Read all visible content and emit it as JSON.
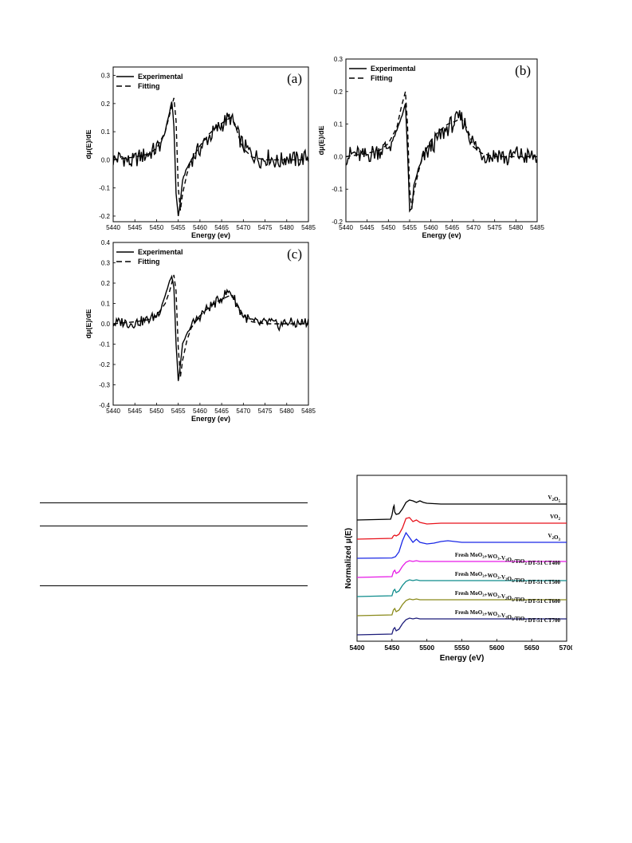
{
  "chart_data": [
    {
      "id": "a",
      "type": "line",
      "panel_label": "(a)",
      "xlabel": "Energy (ev)",
      "ylabel": "dμ(E)/dE",
      "xlim": [
        5440,
        5485
      ],
      "ylim": [
        -0.22,
        0.33
      ],
      "x_ticks": [
        5440,
        5445,
        5450,
        5455,
        5460,
        5465,
        5470,
        5475,
        5480,
        5485
      ],
      "y_ticks": [
        -0.2,
        -0.1,
        0.0,
        0.1,
        0.2,
        0.3
      ],
      "y_tick_labels": [
        "-0.2",
        "-0.1",
        "0.0",
        "0.1",
        "0.2",
        "0.3"
      ],
      "legend": {
        "experimental": "Experimental",
        "fitting": "Fitting",
        "position": "top-left"
      },
      "series": [
        {
          "name": "Experimental",
          "style": "solid",
          "x": [
            5440,
            5442,
            5444,
            5446,
            5448,
            5450,
            5451,
            5452,
            5453,
            5453.5,
            5454,
            5454.5,
            5455,
            5455.5,
            5456,
            5457,
            5458,
            5460,
            5462,
            5464,
            5466,
            5467,
            5468,
            5469,
            5470,
            5472,
            5474,
            5476,
            5478,
            5480,
            5482,
            5485
          ],
          "y": [
            0.0,
            0.01,
            -0.01,
            0.01,
            0.02,
            0.04,
            0.06,
            0.1,
            0.17,
            0.21,
            0.12,
            -0.12,
            -0.2,
            -0.15,
            -0.07,
            -0.03,
            0.0,
            0.04,
            0.08,
            0.11,
            0.14,
            0.15,
            0.12,
            0.08,
            0.05,
            0.02,
            0.0,
            0.01,
            -0.01,
            0.01,
            0.0,
            0.01
          ]
        },
        {
          "name": "Fitting",
          "style": "dashed",
          "x": [
            5440,
            5445,
            5448,
            5450,
            5452,
            5453,
            5454,
            5454.5,
            5455,
            5455.5,
            5456,
            5457,
            5458,
            5460,
            5462,
            5464,
            5466,
            5467,
            5468,
            5469,
            5470,
            5472,
            5475,
            5480,
            5485
          ],
          "y": [
            0.0,
            0.01,
            0.02,
            0.04,
            0.1,
            0.16,
            0.22,
            0.14,
            -0.1,
            -0.18,
            -0.12,
            -0.05,
            0.0,
            0.05,
            0.09,
            0.12,
            0.14,
            0.15,
            0.13,
            0.08,
            0.04,
            0.01,
            0.0,
            0.0,
            0.0
          ]
        }
      ]
    },
    {
      "id": "b",
      "type": "line",
      "panel_label": "(b)",
      "xlabel": "Energy (ev)",
      "ylabel": "dμ(E)/dE",
      "xlim": [
        5440,
        5485
      ],
      "ylim": [
        -0.2,
        0.3
      ],
      "x_ticks": [
        5440,
        5445,
        5450,
        5455,
        5460,
        5465,
        5470,
        5475,
        5480,
        5485
      ],
      "y_ticks": [
        -0.2,
        -0.1,
        0.0,
        0.1,
        0.2,
        0.3
      ],
      "y_tick_labels": [
        "-0.2",
        "-0.1",
        "0.0",
        "0.1",
        "0.2",
        "0.3"
      ],
      "legend": {
        "experimental": "Experimental",
        "fitting": "Fitting",
        "position": "top-left"
      },
      "series": [
        {
          "name": "Experimental",
          "style": "solid",
          "x": [
            5440,
            5442,
            5444,
            5446,
            5448,
            5450,
            5451,
            5452,
            5453,
            5454,
            5454.5,
            5455,
            5455.5,
            5456,
            5457,
            5458,
            5460,
            5462,
            5464,
            5466,
            5467,
            5468,
            5469,
            5470,
            5472,
            5474,
            5476,
            5478,
            5480,
            5482,
            5485
          ],
          "y": [
            0.0,
            0.01,
            0.0,
            0.01,
            0.02,
            0.03,
            0.05,
            0.08,
            0.12,
            0.16,
            0.02,
            -0.17,
            -0.16,
            -0.09,
            -0.04,
            -0.01,
            0.03,
            0.06,
            0.09,
            0.11,
            0.12,
            0.1,
            0.07,
            0.04,
            0.01,
            0.0,
            0.01,
            -0.01,
            0.01,
            0.0,
            0.0
          ]
        },
        {
          "name": "Fitting",
          "style": "dashed",
          "x": [
            5440,
            5445,
            5448,
            5450,
            5452,
            5453,
            5454,
            5454.5,
            5455,
            5455.5,
            5456,
            5457,
            5458,
            5460,
            5462,
            5464,
            5466,
            5467,
            5468,
            5469,
            5470,
            5472,
            5475,
            5480,
            5485
          ],
          "y": [
            0.0,
            0.01,
            0.02,
            0.04,
            0.09,
            0.15,
            0.2,
            0.1,
            -0.1,
            -0.16,
            -0.11,
            -0.05,
            0.0,
            0.05,
            0.08,
            0.1,
            0.11,
            0.12,
            0.1,
            0.07,
            0.03,
            0.01,
            0.0,
            0.0,
            0.0
          ]
        }
      ]
    },
    {
      "id": "c",
      "type": "line",
      "panel_label": "(c)",
      "xlabel": "Energy (ev)",
      "ylabel": "dμ(E)/dE",
      "xlim": [
        5440,
        5485
      ],
      "ylim": [
        -0.4,
        0.4
      ],
      "x_ticks": [
        5440,
        5445,
        5450,
        5455,
        5460,
        5465,
        5470,
        5475,
        5480,
        5485
      ],
      "y_ticks": [
        -0.4,
        -0.3,
        -0.2,
        -0.1,
        0.0,
        0.1,
        0.2,
        0.3,
        0.4
      ],
      "y_tick_labels": [
        "-0.4",
        "-0.3",
        "-0.2",
        "-0.1",
        "0.0",
        "0.1",
        "0.2",
        "0.3",
        "0.4"
      ],
      "legend": {
        "experimental": "Experimental",
        "fitting": "Fitting",
        "position": "top-left"
      },
      "series": [
        {
          "name": "Experimental",
          "style": "solid",
          "x": [
            5440,
            5442,
            5444,
            5446,
            5448,
            5450,
            5451,
            5452,
            5453,
            5453.5,
            5454,
            5454.5,
            5455,
            5455.5,
            5456,
            5457,
            5458,
            5460,
            5462,
            5464,
            5466,
            5467,
            5468,
            5469,
            5470,
            5472,
            5474,
            5476,
            5478,
            5480,
            5482,
            5485
          ],
          "y": [
            0.0,
            0.01,
            0.0,
            0.01,
            0.02,
            0.04,
            0.08,
            0.14,
            0.21,
            0.23,
            0.18,
            -0.1,
            -0.28,
            -0.2,
            -0.1,
            -0.05,
            -0.01,
            0.04,
            0.08,
            0.11,
            0.15,
            0.16,
            0.12,
            0.07,
            0.04,
            0.01,
            0.0,
            0.01,
            -0.01,
            0.01,
            0.0,
            0.01
          ]
        },
        {
          "name": "Fitting",
          "style": "dashed",
          "x": [
            5440,
            5445,
            5448,
            5450,
            5452,
            5453,
            5454,
            5454.5,
            5455,
            5455.5,
            5456,
            5457,
            5458,
            5460,
            5462,
            5464,
            5466,
            5467,
            5468,
            5469,
            5470,
            5472,
            5475,
            5480,
            5485
          ],
          "y": [
            0.0,
            0.01,
            0.02,
            0.04,
            0.1,
            0.16,
            0.24,
            0.16,
            -0.12,
            -0.26,
            -0.18,
            -0.08,
            -0.02,
            0.04,
            0.08,
            0.11,
            0.13,
            0.14,
            0.12,
            0.08,
            0.04,
            0.01,
            0.0,
            0.0,
            0.0
          ]
        }
      ]
    },
    {
      "id": "d",
      "type": "line",
      "xlabel": "Energy (eV)",
      "ylabel": "Normalized μ(E)",
      "xlim": [
        5400,
        5700
      ],
      "x_ticks": [
        5400,
        5450,
        5500,
        5550,
        5600,
        5650,
        5700
      ],
      "y_ticks_shown": false,
      "series": [
        {
          "name": "V2O5",
          "label_main": "V",
          "label_parts": [
            {
              "t": "V"
            },
            {
              "t": "2",
              "sub": true
            },
            {
              "t": "O"
            },
            {
              "t": "5",
              "sub": true
            }
          ],
          "color": "#000000",
          "offset": 6,
          "x": [
            5400,
            5448,
            5450,
            5452,
            5453,
            5454,
            5456,
            5460,
            5465,
            5470,
            5475,
            5480,
            5485,
            5490,
            5495,
            5500,
            5520,
            5550,
            5600,
            5650,
            5700
          ],
          "y": [
            0.0,
            0.05,
            0.3,
            0.8,
            0.9,
            0.5,
            0.35,
            0.4,
            0.7,
            1.1,
            1.25,
            1.2,
            1.1,
            1.2,
            1.1,
            1.05,
            1.0,
            1.0,
            1.0,
            1.0,
            1.0
          ]
        },
        {
          "name": "VO2",
          "label_parts": [
            {
              "t": "VO"
            },
            {
              "t": "2",
              "sub": true
            }
          ],
          "color": "#e8121b",
          "offset": 5,
          "x": [
            5400,
            5450,
            5452,
            5454,
            5456,
            5460,
            5465,
            5470,
            5475,
            5480,
            5485,
            5490,
            5495,
            5500,
            5520,
            5550,
            5600,
            5650,
            5700
          ],
          "y": [
            0.0,
            0.05,
            0.2,
            0.25,
            0.2,
            0.3,
            0.7,
            1.3,
            1.35,
            1.1,
            1.2,
            1.05,
            1.0,
            0.95,
            1.0,
            1.0,
            1.0,
            1.0,
            1.0
          ]
        },
        {
          "name": "V2O3",
          "label_parts": [
            {
              "t": "V"
            },
            {
              "t": "2",
              "sub": true
            },
            {
              "t": "O"
            },
            {
              "t": "3",
              "sub": true
            }
          ],
          "color": "#1a28e6",
          "offset": 4,
          "x": [
            5400,
            5450,
            5455,
            5460,
            5465,
            5470,
            5475,
            5480,
            5485,
            5490,
            5500,
            5510,
            5520,
            5530,
            5540,
            5550,
            5600,
            5650,
            5700
          ],
          "y": [
            0.0,
            0.02,
            0.1,
            0.4,
            1.1,
            1.6,
            1.3,
            1.0,
            1.2,
            1.0,
            0.9,
            0.95,
            1.05,
            1.1,
            1.05,
            1.0,
            1.0,
            1.0,
            1.0
          ]
        },
        {
          "name": "Fresh MoO3+WO3-V2O5/TiO2 DT-51 CT400",
          "label_parts": [
            {
              "t": "Fresh MoO"
            },
            {
              "t": "3",
              "sub": true
            },
            {
              "t": "+WO"
            },
            {
              "t": "3",
              "sub": true
            },
            {
              "t": "-V"
            },
            {
              "t": "2",
              "sub": true
            },
            {
              "t": "O"
            },
            {
              "t": "5",
              "sub": true
            },
            {
              "t": "/TiO"
            },
            {
              "t": "2",
              "sub": true
            },
            {
              "t": " DT-51 CT400"
            }
          ],
          "color": "#e619e6",
          "offset": 3,
          "x": [
            5400,
            5450,
            5452,
            5454,
            5456,
            5460,
            5465,
            5470,
            5475,
            5480,
            5485,
            5490,
            5500,
            5550,
            5600,
            5650,
            5700
          ],
          "y": [
            0.0,
            0.05,
            0.35,
            0.45,
            0.25,
            0.35,
            0.7,
            0.95,
            1.05,
            1.0,
            1.05,
            1.0,
            1.0,
            1.0,
            1.0,
            1.0,
            1.0
          ]
        },
        {
          "name": "Fresh MoO3+WO3-V2O5/TiO2 DT-51 CT500",
          "label_parts": [
            {
              "t": "Fresh MoO"
            },
            {
              "t": "3",
              "sub": true
            },
            {
              "t": "+WO"
            },
            {
              "t": "3",
              "sub": true
            },
            {
              "t": "-V"
            },
            {
              "t": "2",
              "sub": true
            },
            {
              "t": "O"
            },
            {
              "t": "5",
              "sub": true
            },
            {
              "t": "/TiO"
            },
            {
              "t": "2",
              "sub": true
            },
            {
              "t": " DT-51 CT500"
            }
          ],
          "color": "#0e8c8c",
          "offset": 2,
          "x": [
            5400,
            5450,
            5452,
            5454,
            5456,
            5460,
            5465,
            5470,
            5475,
            5480,
            5485,
            5490,
            5500,
            5550,
            5600,
            5650,
            5700
          ],
          "y": [
            0.0,
            0.05,
            0.35,
            0.45,
            0.25,
            0.35,
            0.7,
            0.95,
            1.05,
            1.0,
            1.05,
            1.0,
            1.0,
            1.0,
            1.0,
            1.0,
            1.0
          ]
        },
        {
          "name": "Fresh MoO3+WO3-V2O5/TiO2 DT-51 CT600",
          "label_parts": [
            {
              "t": "Fresh MoO"
            },
            {
              "t": "3",
              "sub": true
            },
            {
              "t": "+WO"
            },
            {
              "t": "3",
              "sub": true
            },
            {
              "t": "-V"
            },
            {
              "t": "2",
              "sub": true
            },
            {
              "t": "O"
            },
            {
              "t": "5",
              "sub": true
            },
            {
              "t": "/TiO"
            },
            {
              "t": "2",
              "sub": true
            },
            {
              "t": " DT-51 CT600"
            }
          ],
          "color": "#8a8a1a",
          "offset": 1,
          "x": [
            5400,
            5450,
            5452,
            5454,
            5456,
            5460,
            5465,
            5470,
            5475,
            5480,
            5485,
            5490,
            5500,
            5550,
            5600,
            5650,
            5700
          ],
          "y": [
            0.0,
            0.05,
            0.35,
            0.45,
            0.25,
            0.35,
            0.7,
            0.95,
            1.05,
            1.0,
            1.05,
            1.0,
            1.0,
            1.0,
            1.0,
            1.0,
            1.0
          ]
        },
        {
          "name": "Fresh MoO3+WO3-V2O5/TiO2 DT-51 CT700",
          "label_parts": [
            {
              "t": "Fresh MoO"
            },
            {
              "t": "3",
              "sub": true
            },
            {
              "t": "+WO"
            },
            {
              "t": "3",
              "sub": true
            },
            {
              "t": "-V"
            },
            {
              "t": "2",
              "sub": true
            },
            {
              "t": "O"
            },
            {
              "t": "5",
              "sub": true
            },
            {
              "t": "/TiO"
            },
            {
              "t": "2",
              "sub": true
            },
            {
              "t": " DT-51 CT700"
            }
          ],
          "color": "#1c1c7a",
          "offset": 0,
          "x": [
            5400,
            5450,
            5452,
            5454,
            5456,
            5460,
            5465,
            5470,
            5475,
            5480,
            5485,
            5490,
            5500,
            5550,
            5600,
            5650,
            5700
          ],
          "y": [
            0.0,
            0.05,
            0.35,
            0.45,
            0.25,
            0.35,
            0.7,
            0.95,
            1.05,
            1.0,
            1.05,
            1.0,
            1.0,
            1.0,
            1.0,
            1.0,
            1.0
          ]
        }
      ]
    }
  ]
}
